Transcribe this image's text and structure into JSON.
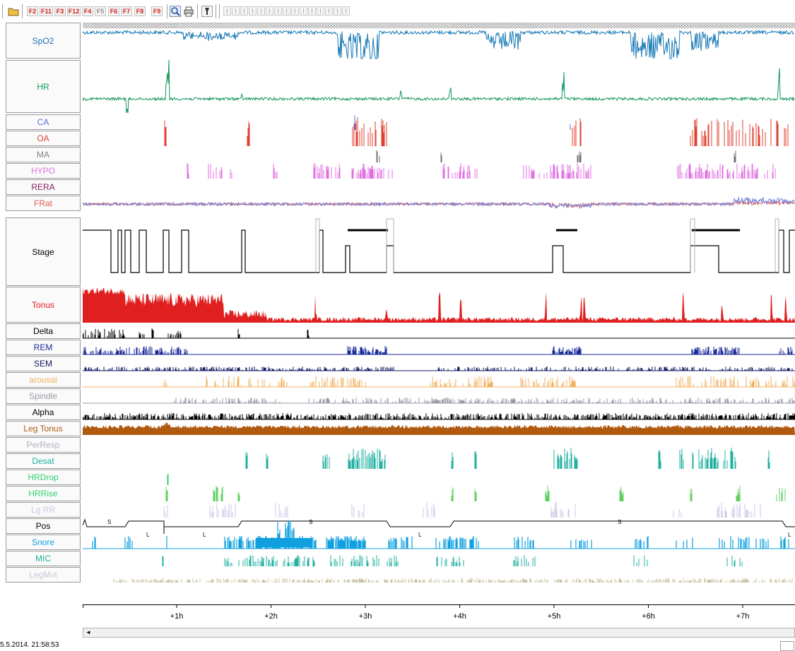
{
  "toolbar": {
    "buttons": [
      {
        "label": "F2",
        "color": "#d02020"
      },
      {
        "label": "F11",
        "color": "#d02020"
      },
      {
        "label": "F3",
        "color": "#d02020"
      },
      {
        "label": "F12",
        "color": "#d02020"
      },
      {
        "label": "F4",
        "color": "#d02020"
      },
      {
        "label": "F5",
        "color": "#909090"
      },
      {
        "label": "F6",
        "color": "#d02020"
      },
      {
        "label": "F7",
        "color": "#d02020"
      },
      {
        "label": "F8",
        "color": "#d02020"
      },
      {
        "label": "F9",
        "color": "#d02020"
      }
    ],
    "icons": [
      "open-folder-icon",
      "zoom-icon",
      "print-icon",
      "marker-tool-icon"
    ]
  },
  "channels": [
    {
      "label": "SpO2",
      "color": "#1f6fb8",
      "trace": "#1a7ab5"
    },
    {
      "label": "HR",
      "color": "#0e9a5c",
      "trace": "#12955a"
    },
    {
      "label": "CA",
      "color": "#5a6fd6",
      "trace": "#5a6fd6"
    },
    {
      "label": "OA",
      "color": "#e04030",
      "trace": "#e04030"
    },
    {
      "label": "MA",
      "color": "#808080",
      "trace": "#707070"
    },
    {
      "label": "HYPO",
      "color": "#e070e0",
      "trace": "#e070e0"
    },
    {
      "label": "RERA",
      "color": "#8a2060",
      "trace": "#8a2060"
    },
    {
      "label": "FRat",
      "color": "#e06050",
      "trace": "#e06050"
    },
    {
      "label": "Stage",
      "color": "#000000",
      "trace": "#000000"
    },
    {
      "label": "Tonus",
      "color": "#e02020",
      "trace": "#e02020"
    },
    {
      "label": "Delta",
      "color": "#000000",
      "trace": "#000000"
    },
    {
      "label": "REM",
      "color": "#1a2a9a",
      "trace": "#1a2a9a"
    },
    {
      "label": "SEM",
      "color": "#101a60",
      "trace": "#101a60"
    },
    {
      "label": "arousal",
      "color": "#f0b060",
      "trace": "#f0b060"
    },
    {
      "label": "Spindle",
      "color": "#9a9aa8",
      "trace": "#9a9aa8"
    },
    {
      "label": "Alpha",
      "color": "#000000",
      "trace": "#000000"
    },
    {
      "label": "Leg Tonus",
      "color": "#b05a10",
      "trace": "#b05a10"
    },
    {
      "label": "PerResp",
      "color": "#b0b0c0",
      "trace": "#b0b0c0"
    },
    {
      "label": "Desat",
      "color": "#20b0a0",
      "trace": "#20b0a0"
    },
    {
      "label": "HRDrop",
      "color": "#30d070",
      "trace": "#30d070"
    },
    {
      "label": "HRRise",
      "color": "#30d070",
      "trace": "#60d060"
    },
    {
      "label": "Lg RR",
      "color": "#c8c8e8",
      "trace": "#c8c8e8"
    },
    {
      "label": "Pos",
      "color": "#000000",
      "trace": "#000000"
    },
    {
      "label": "Snore",
      "color": "#10a0e0",
      "trace": "#10a0e0"
    },
    {
      "label": "MIC",
      "color": "#20b0a0",
      "trace": "#20b0a0"
    },
    {
      "label": "LegMvt",
      "color": "#c8c8d8",
      "trace": "#c8c0a0"
    }
  ],
  "position_markers": [
    "S",
    "L",
    "L",
    "S",
    "L",
    "S",
    "L"
  ],
  "time_axis": {
    "ticks": [
      "+1h",
      "+2h",
      "+3h",
      "+4h",
      "+5h",
      "+6h",
      "+7h"
    ]
  },
  "scroll_left_glyph": "◄",
  "status": {
    "timestamp": "5.5.2014. 21:58:53"
  }
}
